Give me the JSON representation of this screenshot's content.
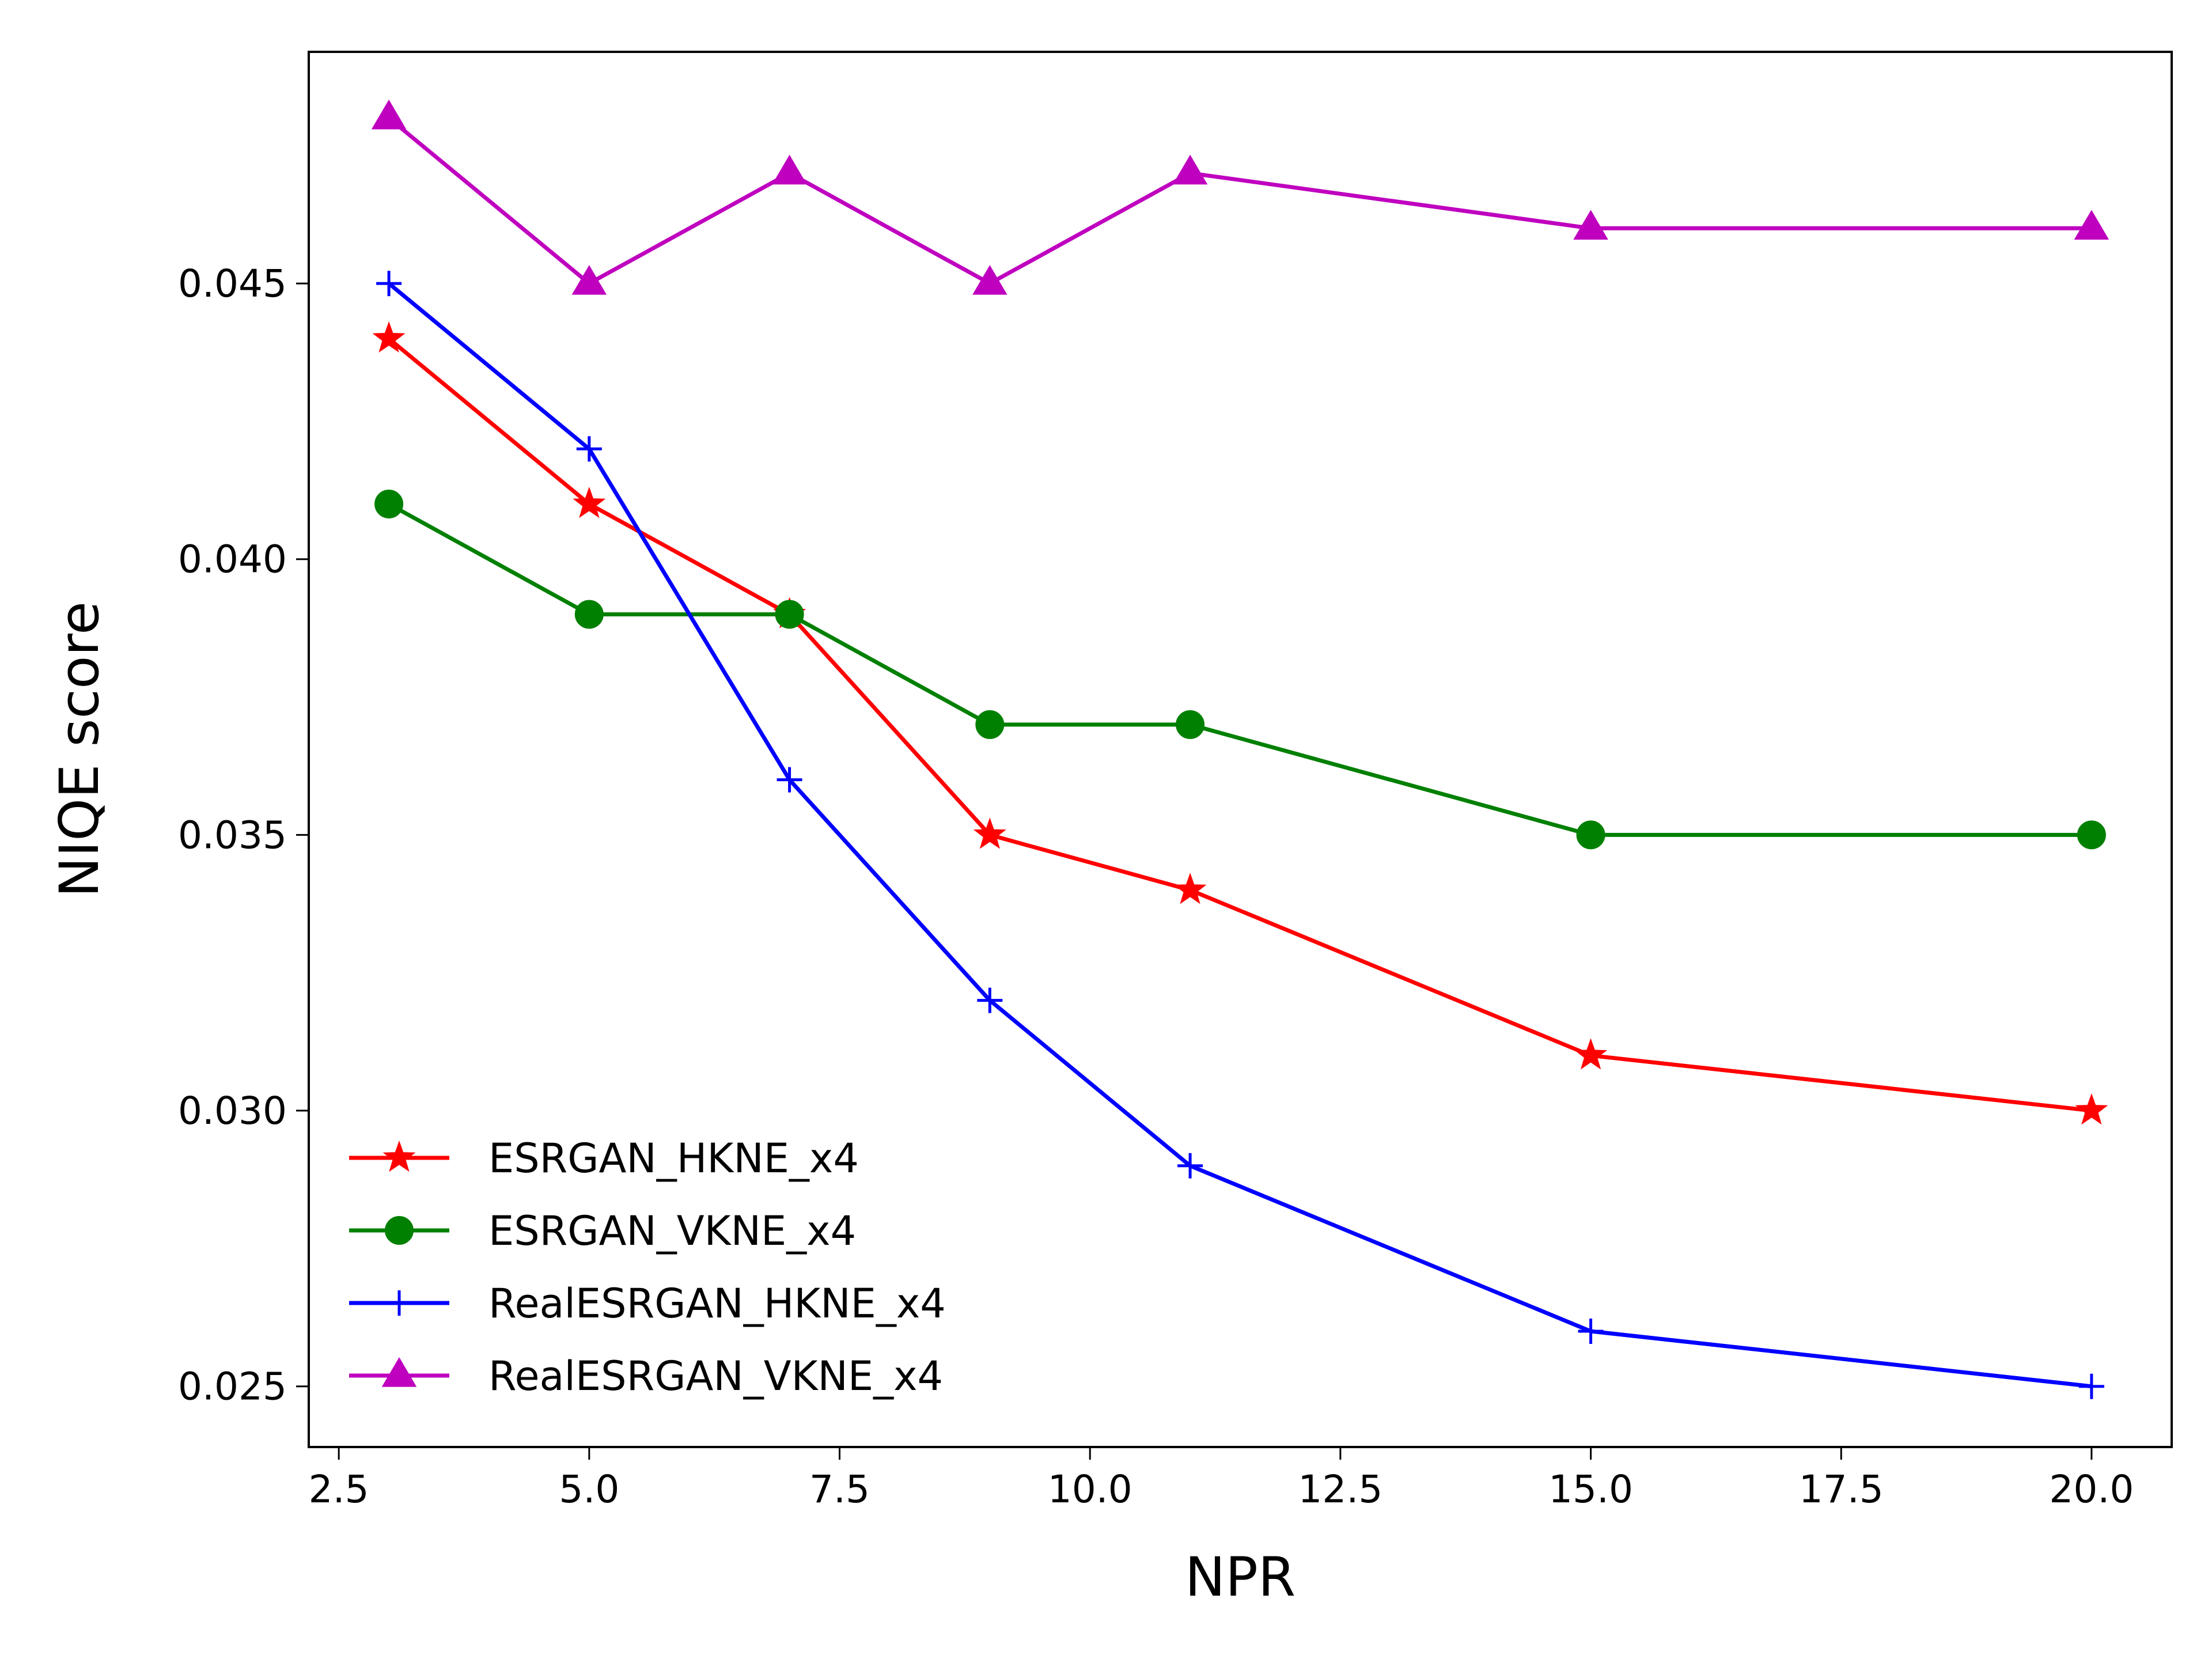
{
  "chart_data": {
    "type": "line",
    "title": "",
    "xlabel": "NPR",
    "ylabel": "NIQE score",
    "xlim": [
      2.2,
      20.8
    ],
    "ylim": [
      0.0239,
      0.0492
    ],
    "xticks": [
      2.5,
      5.0,
      7.5,
      10.0,
      12.5,
      15.0,
      17.5,
      20.0
    ],
    "xtick_labels": [
      "2.5",
      "5.0",
      "7.5",
      "10.0",
      "12.5",
      "15.0",
      "17.5",
      "20.0"
    ],
    "yticks": [
      0.025,
      0.03,
      0.035,
      0.04,
      0.045
    ],
    "ytick_labels": [
      "0.025",
      "0.030",
      "0.035",
      "0.040",
      "0.045"
    ],
    "grid": false,
    "legend_position": "lower-left",
    "x": [
      3,
      5,
      7,
      9,
      11,
      15,
      20
    ],
    "series": [
      {
        "name": "ESRGAN_HKNE_x4",
        "color": "#ff0000",
        "marker": "star",
        "values": [
          0.044,
          0.041,
          0.039,
          0.035,
          0.034,
          0.031,
          0.03
        ]
      },
      {
        "name": "ESRGAN_VKNE_x4",
        "color": "#008000",
        "marker": "circle",
        "values": [
          0.041,
          0.039,
          0.039,
          0.037,
          0.037,
          0.035,
          0.035
        ]
      },
      {
        "name": "RealESRGAN_HKNE_x4",
        "color": "#0000ff",
        "marker": "plus",
        "values": [
          0.045,
          0.042,
          0.036,
          0.032,
          0.029,
          0.026,
          0.025
        ]
      },
      {
        "name": "RealESRGAN_VKNE_x4",
        "color": "#bf00bf",
        "marker": "triangle",
        "values": [
          0.048,
          0.045,
          0.047,
          0.045,
          0.047,
          0.046,
          0.046
        ]
      }
    ]
  }
}
